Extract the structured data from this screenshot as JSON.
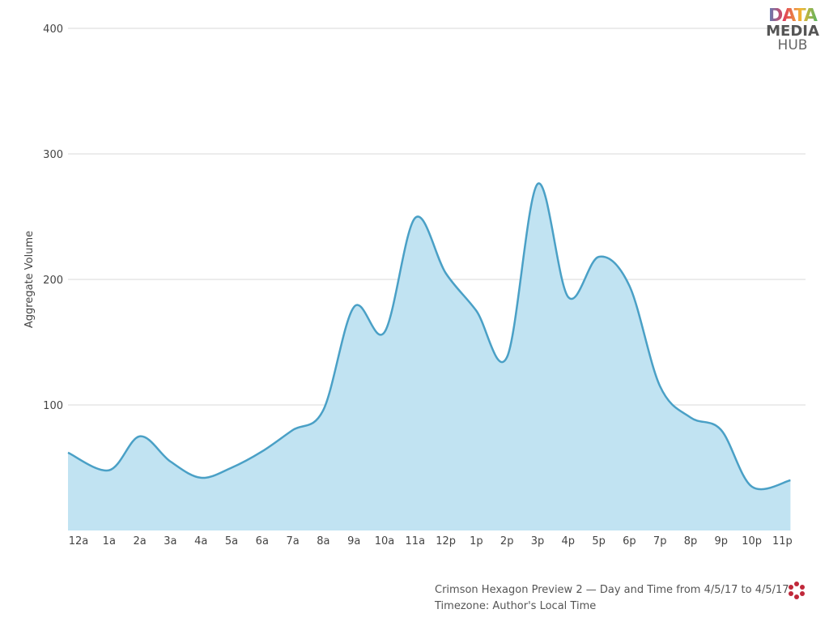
{
  "chart_data": {
    "type": "area",
    "xlabel": "",
    "ylabel": "Aggregate Volume",
    "ylim": [
      0,
      400
    ],
    "yticks": [
      100,
      200,
      300,
      400
    ],
    "grid": true,
    "categories": [
      "12a",
      "1a",
      "2a",
      "3a",
      "4a",
      "5a",
      "6a",
      "7a",
      "8a",
      "9a",
      "10a",
      "11a",
      "12p",
      "1p",
      "2p",
      "3p",
      "4p",
      "5p",
      "6p",
      "7p",
      "8p",
      "9p",
      "10p",
      "11p"
    ],
    "series": [
      {
        "values": [
          62,
          48,
          75,
          55,
          42,
          50,
          63,
          80,
          96,
          178,
          158,
          249,
          205,
          175,
          138,
          276,
          186,
          218,
          195,
          115,
          90,
          80,
          35,
          40
        ],
        "color": "#4aa0c6",
        "fill": "#c1e3f2"
      }
    ]
  },
  "logo": {
    "line1": "DATA",
    "line2": "MEDIA",
    "line3": "HUB"
  },
  "footer": {
    "line1": "Crimson Hexagon Preview 2 — Day and Time from 4/5/17 to 4/5/17",
    "line2": "Timezone: Author's Local Time"
  }
}
